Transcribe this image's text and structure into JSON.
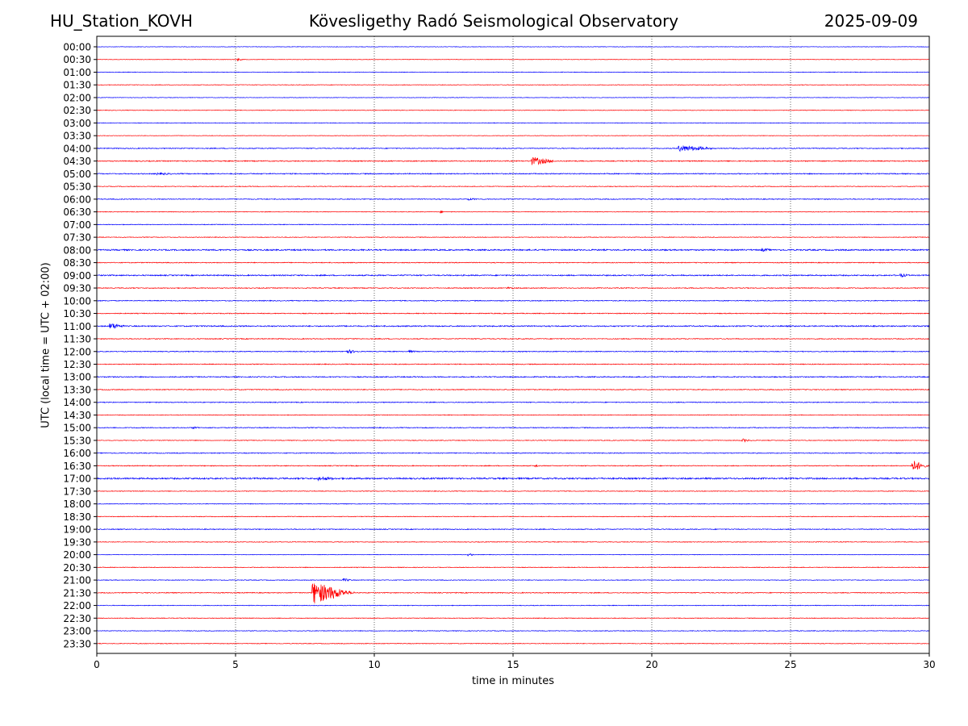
{
  "header": {
    "station": "HU_Station_KOVH",
    "observatory": "Kövesligethy Radó Seismological Observatory",
    "date": "2025-09-09"
  },
  "colors": {
    "even_rows": "#0000ff",
    "odd_rows": "#ff0000",
    "grid": "#000000"
  },
  "chart_data": {
    "type": "line",
    "title": "Kövesligethy Radó Seismological Observatory",
    "xlabel": "time in minutes",
    "ylabel": "UTC (local time = UTC + 02:00)",
    "xlim": [
      0,
      30
    ],
    "x_ticks": [
      0,
      5,
      10,
      15,
      20,
      25,
      30
    ],
    "grid": "vertical dotted lines at 5-minute ticks",
    "row_labels": [
      "00:00",
      "00:30",
      "01:00",
      "01:30",
      "02:00",
      "02:30",
      "03:00",
      "03:30",
      "04:00",
      "04:30",
      "05:00",
      "05:30",
      "06:00",
      "06:30",
      "07:00",
      "07:30",
      "08:00",
      "08:30",
      "09:00",
      "09:30",
      "10:00",
      "10:30",
      "11:00",
      "11:30",
      "12:00",
      "12:30",
      "13:00",
      "13:30",
      "14:00",
      "14:30",
      "15:00",
      "15:30",
      "16:00",
      "16:30",
      "17:00",
      "17:30",
      "18:00",
      "18:30",
      "19:00",
      "19:30",
      "20:00",
      "20:30",
      "21:00",
      "21:30",
      "22:00",
      "22:30",
      "23:00",
      "23:30"
    ],
    "row_noise": [
      0.3,
      0.3,
      0.35,
      0.35,
      0.3,
      0.35,
      0.35,
      0.3,
      0.5,
      0.6,
      0.6,
      0.4,
      0.5,
      0.35,
      0.4,
      0.4,
      0.8,
      0.5,
      0.7,
      0.5,
      0.5,
      0.5,
      0.7,
      0.5,
      0.5,
      0.5,
      0.6,
      0.5,
      0.5,
      0.4,
      0.5,
      0.4,
      0.5,
      0.5,
      0.9,
      0.4,
      0.4,
      0.4,
      0.5,
      0.4,
      0.3,
      0.4,
      0.4,
      0.5,
      0.4,
      0.4,
      0.4,
      0.4
    ],
    "events": [
      {
        "row": "00:30",
        "t": 5.1,
        "amp": 1.5,
        "dur": 0.2
      },
      {
        "row": "04:00",
        "t": 21.0,
        "amp": 4,
        "dur": 1.5
      },
      {
        "row": "04:30",
        "t": 15.7,
        "amp": 5,
        "dur": 1.0
      },
      {
        "row": "05:00",
        "t": 2.2,
        "amp": 1.5,
        "dur": 1.0
      },
      {
        "row": "06:00",
        "t": 13.4,
        "amp": 1.5,
        "dur": 0.5
      },
      {
        "row": "06:30",
        "t": 12.4,
        "amp": 1.5,
        "dur": 0.2
      },
      {
        "row": "08:00",
        "t": 24.0,
        "amp": 2,
        "dur": 0.6
      },
      {
        "row": "09:00",
        "t": 29.0,
        "amp": 2,
        "dur": 0.4
      },
      {
        "row": "09:30",
        "t": 14.8,
        "amp": 1.5,
        "dur": 0.6
      },
      {
        "row": "11:00",
        "t": 0.5,
        "amp": 4,
        "dur": 0.6
      },
      {
        "row": "12:00",
        "t": 9.0,
        "amp": 2.5,
        "dur": 0.6
      },
      {
        "row": "12:00",
        "t": 11.3,
        "amp": 1.5,
        "dur": 0.4
      },
      {
        "row": "15:00",
        "t": 3.5,
        "amp": 1.5,
        "dur": 0.3
      },
      {
        "row": "15:30",
        "t": 23.3,
        "amp": 2,
        "dur": 0.4
      },
      {
        "row": "16:30",
        "t": 15.8,
        "amp": 1.5,
        "dur": 0.3
      },
      {
        "row": "16:30",
        "t": 29.4,
        "amp": 7,
        "dur": 0.6
      },
      {
        "row": "17:00",
        "t": 8.0,
        "amp": 2.5,
        "dur": 1.0
      },
      {
        "row": "20:00",
        "t": 13.4,
        "amp": 1.5,
        "dur": 0.3
      },
      {
        "row": "21:00",
        "t": 8.9,
        "amp": 2,
        "dur": 0.4
      },
      {
        "row": "21:30",
        "t": 7.8,
        "amp": 14,
        "dur": 1.5
      }
    ]
  }
}
